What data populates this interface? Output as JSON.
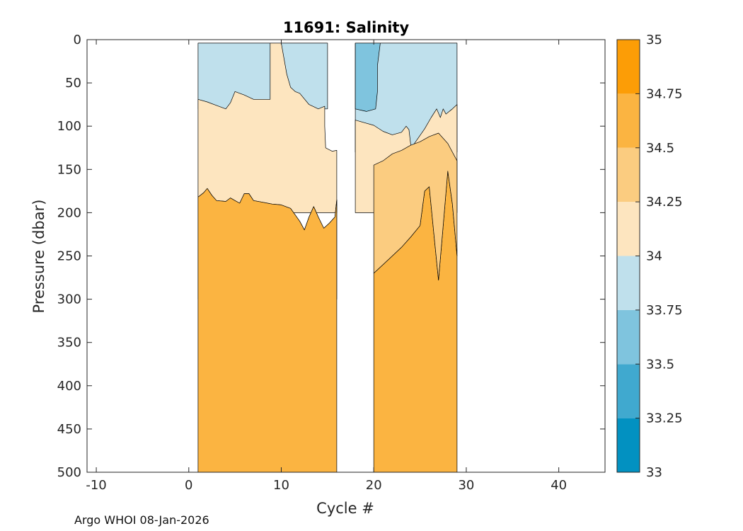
{
  "chart_data": {
    "type": "contour",
    "title": "11691:  Salinity",
    "xlabel": "Cycle #",
    "ylabel": "Pressure (dbar)",
    "xlim": [
      -11,
      45
    ],
    "ylim": [
      500,
      0
    ],
    "y_reversed": true,
    "xticks": [
      -10,
      0,
      10,
      20,
      30,
      40
    ],
    "yticks": [
      0,
      50,
      100,
      150,
      200,
      250,
      300,
      350,
      400,
      450,
      500
    ],
    "colorbar": {
      "levels": [
        33,
        33.25,
        33.5,
        33.75,
        34,
        34.25,
        34.5,
        34.75,
        35
      ],
      "tick_labels": [
        "33",
        "33.25",
        "33.5",
        "33.75",
        "34",
        "34.25",
        "34.5",
        "34.75",
        "35"
      ],
      "colors": [
        "#0291c1",
        "#40a9cf",
        "#7fc4de",
        "#bfe0ec",
        "#fde5bf",
        "#fbcc80",
        "#fbb441",
        "#fc9d06"
      ]
    },
    "data_segments": [
      {
        "cycles": [
          1,
          16
        ],
        "top_pressure": 4,
        "bottom_pressure": 500
      },
      {
        "cycles": [
          20,
          29
        ],
        "top_pressure": 4,
        "bottom_pressure": 500
      }
    ],
    "regions": [
      {
        "band": "33.75-34",
        "color": "#bfe0ec",
        "points": [
          [
            1,
            4
          ],
          [
            15,
            4
          ],
          [
            15,
            80
          ],
          [
            1,
            80
          ]
        ]
      },
      {
        "band": "34-34.25",
        "color": "#fde5bf",
        "points": [
          [
            1,
            69
          ],
          [
            2,
            72
          ],
          [
            3,
            76
          ],
          [
            4,
            80
          ],
          [
            4.5,
            73
          ],
          [
            5,
            60
          ],
          [
            6,
            64
          ],
          [
            7,
            69
          ],
          [
            8,
            69
          ],
          [
            8.8,
            69
          ],
          [
            8.8,
            4
          ],
          [
            10,
            4
          ],
          [
            10.6,
            40
          ],
          [
            11,
            55
          ],
          [
            11.5,
            60
          ],
          [
            12,
            62
          ],
          [
            13,
            75
          ],
          [
            13.6,
            78
          ],
          [
            14,
            80
          ],
          [
            14.7,
            77
          ],
          [
            14.7,
            100
          ],
          [
            14.8,
            125
          ],
          [
            15.5,
            129
          ],
          [
            16,
            128
          ],
          [
            16,
            200
          ],
          [
            1,
            200
          ]
        ]
      },
      {
        "band": "33.75-34 (cycles 18-29)",
        "color": "#bfe0ec",
        "points": [
          [
            18,
            4
          ],
          [
            29,
            4
          ],
          [
            29,
            130
          ],
          [
            18,
            130
          ]
        ]
      },
      {
        "band": "33.5-33.75",
        "color": "#7fc4de",
        "points": [
          [
            18,
            4
          ],
          [
            20.7,
            4
          ],
          [
            20.4,
            30
          ],
          [
            20.4,
            60
          ],
          [
            20.2,
            80
          ],
          [
            19.2,
            83
          ],
          [
            18,
            80
          ]
        ]
      },
      {
        "band": "34-34.25 (cycles 18-29)",
        "color": "#fde5bf",
        "points": [
          [
            18,
            93
          ],
          [
            19,
            96
          ],
          [
            20,
            99
          ],
          [
            21,
            106
          ],
          [
            22,
            110
          ],
          [
            23,
            107
          ],
          [
            23.5,
            100
          ],
          [
            23.8,
            104
          ],
          [
            24,
            122
          ],
          [
            24.2,
            123
          ],
          [
            25.5,
            103
          ],
          [
            26.2,
            90
          ],
          [
            26.8,
            80
          ],
          [
            27.2,
            90
          ],
          [
            27.5,
            80
          ],
          [
            27.8,
            86
          ],
          [
            28.5,
            80
          ],
          [
            29,
            75
          ],
          [
            29,
            200
          ],
          [
            18,
            200
          ]
        ]
      },
      {
        "band": "34.25-34.5",
        "color": "#fbcc80",
        "points": [
          [
            1,
            182
          ],
          [
            1.6,
            177
          ],
          [
            2,
            172
          ],
          [
            2.5,
            180
          ],
          [
            3,
            186
          ],
          [
            4,
            187
          ],
          [
            4.5,
            183
          ],
          [
            5,
            186
          ],
          [
            5.5,
            189
          ],
          [
            6,
            178
          ],
          [
            6.5,
            178
          ],
          [
            7,
            186
          ],
          [
            8,
            188
          ],
          [
            9,
            190
          ],
          [
            10,
            191
          ],
          [
            11,
            195
          ],
          [
            12,
            210
          ],
          [
            12.5,
            220
          ],
          [
            13,
            205
          ],
          [
            13.5,
            193
          ],
          [
            14,
            205
          ],
          [
            14.6,
            218
          ],
          [
            15.2,
            212
          ],
          [
            15.8,
            205
          ],
          [
            16,
            185
          ],
          [
            16,
            300
          ],
          [
            1,
            300
          ]
        ]
      },
      {
        "band": "34.5-34.75",
        "color": "#fbb441",
        "points": [
          [
            1,
            182
          ],
          [
            1.6,
            177
          ],
          [
            2,
            172
          ],
          [
            2.5,
            180
          ],
          [
            3,
            186
          ],
          [
            4,
            187
          ],
          [
            4.5,
            183
          ],
          [
            5,
            186
          ],
          [
            5.5,
            189
          ],
          [
            6,
            178
          ],
          [
            6.5,
            178
          ],
          [
            7,
            186
          ],
          [
            8,
            188
          ],
          [
            9,
            190
          ],
          [
            10,
            191
          ],
          [
            11,
            195
          ],
          [
            12,
            210
          ],
          [
            12.5,
            220
          ],
          [
            13,
            205
          ],
          [
            13.5,
            193
          ],
          [
            14,
            205
          ],
          [
            14.6,
            218
          ],
          [
            15.2,
            212
          ],
          [
            15.8,
            205
          ],
          [
            16,
            185
          ],
          [
            16,
            500
          ],
          [
            1,
            500
          ]
        ]
      },
      {
        "band": "34.5-34.75 (cycles 20-29)",
        "color": "#fbb441",
        "points": [
          [
            20,
            270
          ],
          [
            20.5,
            265
          ],
          [
            21,
            260
          ],
          [
            22,
            250
          ],
          [
            23,
            240
          ],
          [
            24,
            228
          ],
          [
            25,
            215
          ],
          [
            25.5,
            175
          ],
          [
            26,
            170
          ],
          [
            26.5,
            225
          ],
          [
            27,
            278
          ],
          [
            27.5,
            215
          ],
          [
            28,
            152
          ],
          [
            28.5,
            190
          ],
          [
            29,
            250
          ],
          [
            29,
            500
          ],
          [
            20,
            500
          ]
        ]
      },
      {
        "band": "34.25-34.5 (cycles 20-29)",
        "color": "#fbcc80",
        "points": [
          [
            20,
            145
          ],
          [
            21,
            140
          ],
          [
            22,
            132
          ],
          [
            23,
            128
          ],
          [
            24,
            122
          ],
          [
            25,
            118
          ],
          [
            26,
            112
          ],
          [
            27,
            108
          ],
          [
            28,
            120
          ],
          [
            29,
            140
          ],
          [
            29,
            250
          ],
          [
            28.5,
            190
          ],
          [
            28,
            152
          ],
          [
            27.5,
            215
          ],
          [
            27,
            278
          ],
          [
            26.5,
            225
          ],
          [
            26,
            170
          ],
          [
            25.5,
            175
          ],
          [
            25,
            215
          ],
          [
            24,
            228
          ],
          [
            23,
            240
          ],
          [
            22,
            250
          ],
          [
            21,
            260
          ],
          [
            20.5,
            265
          ],
          [
            20,
            270
          ]
        ]
      }
    ]
  },
  "footer": {
    "text": "Argo WHOI 08-Jan-2026"
  }
}
